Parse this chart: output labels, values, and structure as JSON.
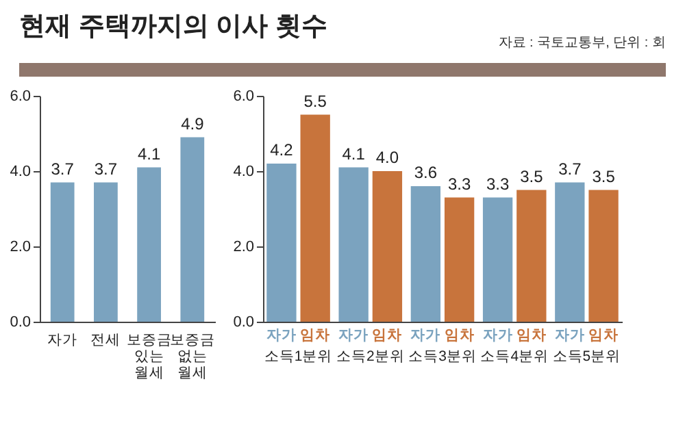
{
  "chart_data": [
    {
      "type": "bar",
      "title": "현재 주택까지의 이사 횟수",
      "annotations": [
        "자료 : 국토교통부, 단위 : 회"
      ],
      "categories": [
        "자가",
        "전세",
        "보증금 있는 월세",
        "보증금 없는 월세"
      ],
      "values": [
        3.7,
        3.7,
        4.1,
        4.9
      ],
      "value_labels": [
        "3.7",
        "3.7",
        "4.1",
        "4.9"
      ],
      "color": "#7ba3bf",
      "ylim": [
        0,
        6
      ],
      "yticks": [
        {
          "value": 0,
          "label": "0.0"
        },
        {
          "value": 2,
          "label": "2.0"
        },
        {
          "value": 4,
          "label": "4.0"
        },
        {
          "value": 6,
          "label": "6.0"
        }
      ]
    },
    {
      "type": "bar",
      "categories": [
        "소득1분위",
        "소득2분위",
        "소득3분위",
        "소득4분위",
        "소득5분위"
      ],
      "series": [
        {
          "name": "자가",
          "color": "#7ba3bf",
          "values": [
            4.2,
            4.1,
            3.6,
            3.3,
            3.7
          ],
          "value_labels": [
            "4.2",
            "4.1",
            "3.6",
            "3.3",
            "3.7"
          ]
        },
        {
          "name": "임차",
          "color": "#c8743c",
          "values": [
            5.5,
            4.0,
            3.3,
            3.5,
            3.5
          ],
          "value_labels": [
            "5.5",
            "4.0",
            "3.3",
            "3.5",
            "3.5"
          ]
        }
      ],
      "ylim": [
        0,
        6
      ],
      "yticks": [
        {
          "value": 0,
          "label": "0.0"
        },
        {
          "value": 2,
          "label": "2.0"
        },
        {
          "value": 4,
          "label": "4.0"
        },
        {
          "value": 6,
          "label": "6.0"
        }
      ]
    }
  ]
}
